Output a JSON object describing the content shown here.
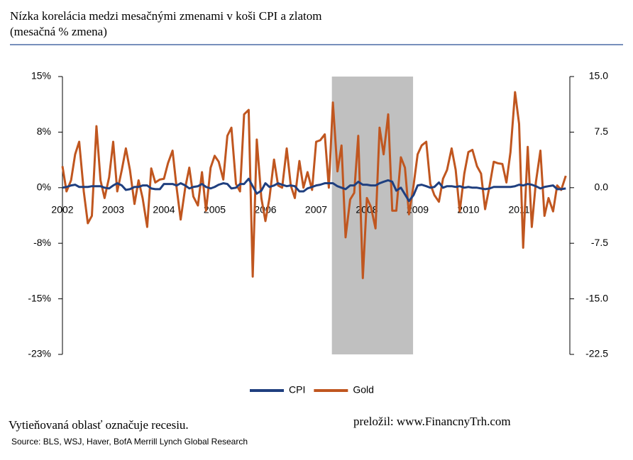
{
  "chart_data": {
    "type": "line",
    "title": "Nízka korelácia medzi mesačnými zmenami v koši CPI a zlatom",
    "subtitle": "(mesačná % zmena)",
    "note": "Vytieňovaná oblasť označuje recesiu.",
    "credit": "preložil: www.FinancnyTrh.com",
    "source": "Source: BLS, WSJ, Haver, BofA Merrill Lynch Global Research",
    "recession": [
      2007.31,
      2008.91
    ],
    "xlim": [
      2002,
      2012
    ],
    "xticks": [
      2002,
      2003,
      2004,
      2005,
      2006,
      2007,
      2008,
      2009,
      2010,
      2011
    ],
    "ylim": [
      -22.5,
      15
    ],
    "yticks": [
      {
        "value": 15,
        "label": "15%"
      },
      {
        "value": 7.5,
        "label": "8%"
      },
      {
        "value": 0,
        "label": "0%"
      },
      {
        "value": -7.5,
        "label": "-8%"
      },
      {
        "value": -15,
        "label": "-15%"
      },
      {
        "value": -22.5,
        "label": "-23%"
      }
    ],
    "y2lim": [
      -22.5,
      15
    ],
    "y2ticks": [
      {
        "value": 15,
        "label": "15.0"
      },
      7.5,
      {
        "value": 0,
        "label": "0.0"
      },
      -7.5,
      {
        "value": -15,
        "label": "-15.0"
      },
      -22.5
    ],
    "x": [
      2002.0,
      2002.08,
      2002.17,
      2002.25,
      2002.33,
      2002.42,
      2002.5,
      2002.58,
      2002.67,
      2002.75,
      2002.83,
      2002.92,
      2003.0,
      2003.08,
      2003.17,
      2003.25,
      2003.33,
      2003.42,
      2003.5,
      2003.58,
      2003.67,
      2003.75,
      2003.83,
      2003.92,
      2004.0,
      2004.08,
      2004.17,
      2004.25,
      2004.33,
      2004.42,
      2004.5,
      2004.58,
      2004.67,
      2004.75,
      2004.83,
      2004.92,
      2005.0,
      2005.08,
      2005.17,
      2005.25,
      2005.33,
      2005.42,
      2005.5,
      2005.58,
      2005.67,
      2005.75,
      2005.83,
      2005.92,
      2006.0,
      2006.08,
      2006.17,
      2006.25,
      2006.33,
      2006.42,
      2006.5,
      2006.58,
      2006.67,
      2006.75,
      2006.83,
      2006.92,
      2007.0,
      2007.08,
      2007.17,
      2007.25,
      2007.33,
      2007.42,
      2007.5,
      2007.58,
      2007.67,
      2007.75,
      2007.83,
      2007.92,
      2008.0,
      2008.08,
      2008.17,
      2008.25,
      2008.33,
      2008.42,
      2008.5,
      2008.58,
      2008.67,
      2008.75,
      2008.83,
      2008.92,
      2009.0,
      2009.08,
      2009.17,
      2009.25,
      2009.33,
      2009.42,
      2009.5,
      2009.58,
      2009.67,
      2009.75,
      2009.83,
      2009.92,
      2010.0,
      2010.08,
      2010.17,
      2010.25,
      2010.33,
      2010.42,
      2010.5,
      2010.58,
      2010.67,
      2010.75,
      2010.83,
      2010.92,
      2011.0,
      2011.08,
      2011.17,
      2011.25,
      2011.33,
      2011.42,
      2011.5,
      2011.58,
      2011.67,
      2011.75,
      2011.83,
      2011.92
    ],
    "series": [
      {
        "name": "CPI",
        "color": "#1f3f7f",
        "axis": "y",
        "values": [
          0.0,
          0.1,
          0.3,
          0.4,
          0.1,
          0.1,
          0.1,
          0.2,
          0.2,
          0.2,
          0.0,
          -0.1,
          0.3,
          0.6,
          0.3,
          -0.3,
          -0.2,
          0.1,
          0.1,
          0.3,
          0.3,
          -0.1,
          -0.2,
          -0.2,
          0.5,
          0.5,
          0.5,
          0.3,
          0.6,
          0.3,
          -0.1,
          0.1,
          0.2,
          0.5,
          0.1,
          -0.1,
          0.1,
          0.4,
          0.6,
          0.5,
          -0.1,
          0.0,
          0.5,
          0.5,
          1.2,
          0.2,
          -0.8,
          -0.4,
          0.6,
          0.1,
          0.3,
          0.6,
          0.4,
          0.2,
          0.3,
          0.2,
          -0.5,
          -0.5,
          -0.1,
          0.1,
          0.3,
          0.4,
          0.6,
          0.6,
          0.6,
          0.2,
          0.0,
          -0.2,
          0.3,
          0.3,
          0.8,
          0.4,
          0.4,
          0.3,
          0.3,
          0.6,
          0.8,
          1.0,
          0.8,
          -0.4,
          0.0,
          -0.9,
          -1.8,
          -1.0,
          0.3,
          0.4,
          0.2,
          0.0,
          0.1,
          0.7,
          0.0,
          0.2,
          0.2,
          0.1,
          0.2,
          0.0,
          0.1,
          0.0,
          0.0,
          -0.1,
          -0.2,
          -0.1,
          0.1,
          0.1,
          0.1,
          0.1,
          0.1,
          0.2,
          0.4,
          0.3,
          0.5,
          0.4,
          0.2,
          -0.1,
          0.1,
          0.2,
          0.3,
          -0.2,
          -0.2,
          -0.1
        ]
      },
      {
        "name": "Gold",
        "color": "#c0561f",
        "axis": "y2",
        "values": [
          2.9,
          -0.5,
          1.0,
          4.5,
          6.2,
          -0.5,
          -4.8,
          -3.8,
          8.3,
          1.0,
          -1.4,
          1.4,
          6.2,
          -0.5,
          2.4,
          5.3,
          2.4,
          -2.2,
          1.0,
          -1.4,
          -5.3,
          2.6,
          0.7,
          1.1,
          1.2,
          3.3,
          5.0,
          0,
          -4.3,
          0,
          2.7,
          -1.2,
          -2.4,
          2.1,
          -3.1,
          2.7,
          4.3,
          3.5,
          1.1,
          7.0,
          8.1,
          0.5,
          -0.5,
          9.9,
          10.5,
          -12.0,
          6.5,
          -1.4,
          -4.5,
          -1.4,
          3.8,
          0.3,
          0,
          5.3,
          0.3,
          -1.4,
          3.6,
          0,
          2.1,
          -0.3,
          6.2,
          6.4,
          7.2,
          0,
          11.5,
          2.2,
          5.7,
          -6.7,
          -1.6,
          -0.7,
          7.0,
          -12.2,
          -1.4,
          -2.6,
          -5.5,
          8.1,
          4.5,
          9.9,
          -3.1,
          -3.1,
          4.1,
          2.7,
          -3.6,
          0.3,
          4.5,
          5.7,
          6.2,
          0.5,
          -1.0,
          -1.9,
          1.2,
          2.4,
          5.3,
          2.4,
          -3.2,
          1.9,
          4.8,
          5.1,
          2.9,
          1.9,
          -2.9,
          0.3,
          3.5,
          3.3,
          3.2,
          0.7,
          4.8,
          12.9,
          8.6,
          -8.1,
          5.5,
          -5.3,
          0.7,
          5.0,
          -3.8,
          -1.4,
          -3.2,
          0.3,
          -0.3,
          1.6
        ]
      }
    ]
  }
}
